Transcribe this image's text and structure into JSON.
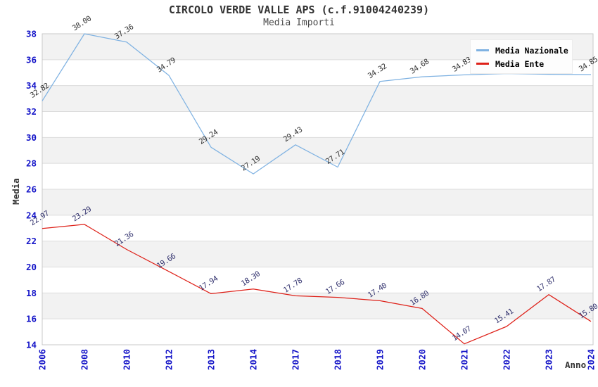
{
  "header": {
    "title": "CIRCOLO VERDE VALLE APS (c.f.91004240239)",
    "subtitle": "Media Importi"
  },
  "legend": {
    "position": "top-right",
    "items": [
      {
        "label": "Media Nazionale"
      },
      {
        "label": "Media Ente"
      }
    ]
  },
  "axes": {
    "y_label": "Media",
    "x_label": "Anno",
    "y_ticks": [
      14,
      16,
      18,
      20,
      22,
      24,
      26,
      28,
      30,
      32,
      34,
      36,
      38
    ],
    "x_ticks": [
      "2006",
      "2008",
      "2010",
      "2012",
      "2013",
      "2014",
      "2017",
      "2018",
      "2019",
      "2020",
      "2021",
      "2022",
      "2023",
      "2024"
    ]
  },
  "colors": {
    "series_nazionale": "#7fb2e2",
    "series_ente": "#de2119",
    "tick_label_blue": "#1414c8",
    "band_gray": "#f2f2f2",
    "grid_line": "#dcdcdc",
    "plot_border": "#c9c9c9",
    "title_text": "#333333",
    "label_nazionale": "#333333",
    "label_ente": "#32326e",
    "legend_bg": "#fdfdfd"
  },
  "chart_data": {
    "type": "line",
    "title": "CIRCOLO VERDE VALLE APS (c.f.91004240239)",
    "subtitle": "Media Importi",
    "xlabel": "Anno",
    "ylabel": "Media",
    "categories": [
      "2006",
      "2008",
      "2010",
      "2012",
      "2013",
      "2014",
      "2017",
      "2018",
      "2019",
      "2020",
      "2021",
      "2022",
      "2023",
      "2024"
    ],
    "ylim": [
      14,
      38
    ],
    "ytick_step": 2,
    "grid": "horizontal gridlines every 2 units, alternating gray/white bands",
    "legend_position": "top-right",
    "series": [
      {
        "name": "Media Nazionale",
        "color": "#7fb2e2",
        "label_color": "#333333",
        "values": [
          32.82,
          38.0,
          37.36,
          34.79,
          29.24,
          27.19,
          29.43,
          27.71,
          34.32,
          34.68,
          34.83,
          34.93,
          34.87,
          34.85
        ],
        "point_labels": [
          "32.82",
          "38.00",
          "37.36",
          "34.79",
          "29.24",
          "27.19",
          "29.43",
          "27.71",
          "34.32",
          "34.68",
          "34.83",
          null,
          null,
          "34.85"
        ],
        "labels_hidden_behind_legend": [
          "2022",
          "2023"
        ]
      },
      {
        "name": "Media Ente",
        "color": "#de2119",
        "label_color": "#32326e",
        "values": [
          22.97,
          23.29,
          21.36,
          19.66,
          17.94,
          18.3,
          17.78,
          17.66,
          17.4,
          16.8,
          14.07,
          15.41,
          17.87,
          15.8
        ],
        "point_labels": [
          "22.97",
          "23.29",
          "21.36",
          "19.66",
          "17.94",
          "18.30",
          "17.78",
          "17.66",
          "17.40",
          "16.80",
          "14.07",
          "15.41",
          "17.87",
          "15.80"
        ],
        "labels_hidden_behind_legend": []
      }
    ]
  }
}
